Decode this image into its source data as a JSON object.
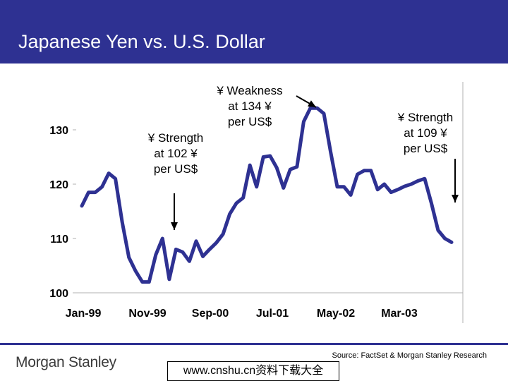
{
  "title": "Japanese Yen vs. U.S. Dollar",
  "annotations": [
    {
      "lines": [
        "¥ Weakness",
        "at 134 ¥",
        "per US$"
      ]
    },
    {
      "lines": [
        "¥ Strength",
        "at 102 ¥",
        "per US$"
      ]
    },
    {
      "lines": [
        "¥ Strength",
        "at 109 ¥",
        "per US$"
      ]
    }
  ],
  "footer": {
    "logo": "Morgan Stanley",
    "source": "Source: FactSet & Morgan Stanley Research",
    "watermark": "www.cnshu.cn资料下载大全"
  },
  "colors": {
    "title_bar": "#2e3192",
    "line": "#2e3192"
  },
  "chart_data": {
    "type": "line",
    "title": "",
    "xlabel": "",
    "ylabel": "",
    "ylim": [
      100,
      135
    ],
    "yticks": [
      100,
      110,
      120,
      130
    ],
    "x_tick_labels": [
      "Jan-99",
      "Nov-99",
      "Sep-00",
      "Jul-01",
      "May-02",
      "Mar-03"
    ],
    "grid": false,
    "series": [
      {
        "values": [
          116,
          118.5,
          118.5,
          119.5,
          122,
          121,
          113,
          106.5,
          104,
          102,
          102,
          107,
          110,
          102.5,
          108,
          107.5,
          105.8,
          109.5,
          106.7,
          108,
          109.2,
          110.8,
          114.5,
          116.5,
          117.5,
          123.5,
          119.5,
          125,
          125.2,
          123,
          119.3,
          122.7,
          123.2,
          131.5,
          134,
          134,
          133,
          126,
          119.5,
          119.5,
          118,
          121.8,
          122.5,
          122.5,
          119,
          120,
          118.5,
          119,
          119.6,
          120,
          120.6,
          121,
          116.5,
          111.5,
          110,
          109.3
        ]
      }
    ]
  }
}
